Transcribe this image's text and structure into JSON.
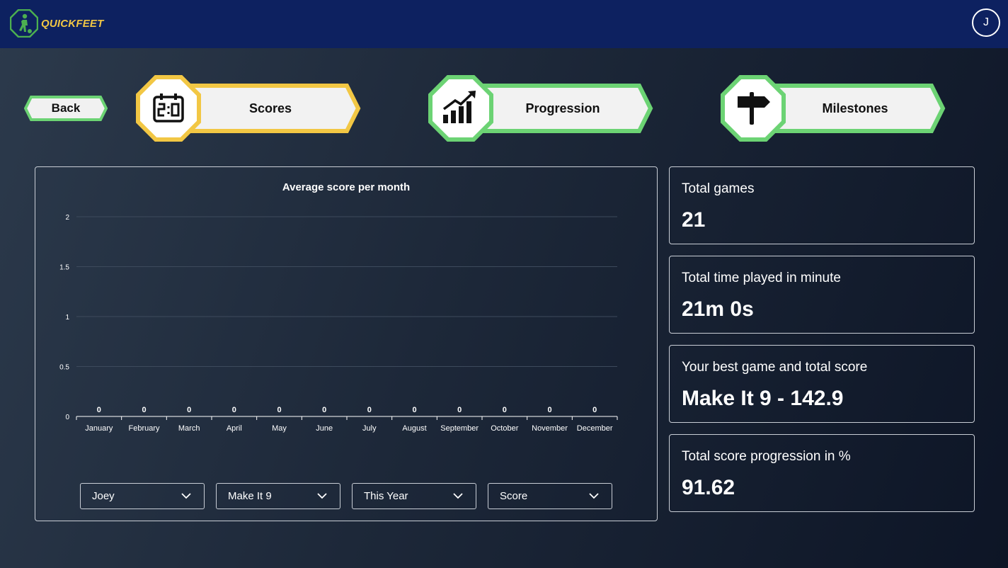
{
  "header": {
    "brand": "QUICKFEET",
    "avatar_initial": "J",
    "colors": {
      "bar": "#0d2160",
      "brand_text": "#f2c744",
      "logo_green": "#4caf50"
    }
  },
  "nav": {
    "back_label": "Back",
    "tabs": [
      {
        "label": "Scores",
        "icon": "scoreboard-icon",
        "active": true,
        "accent": "#f2c744"
      },
      {
        "label": "Progression",
        "icon": "bar-chart-up-icon",
        "active": false,
        "accent": "#6cd374"
      },
      {
        "label": "Milestones",
        "icon": "signpost-icon",
        "active": false,
        "accent": "#6cd374"
      }
    ]
  },
  "chart_data": {
    "type": "bar",
    "title": "Average score per month",
    "categories": [
      "January",
      "February",
      "March",
      "April",
      "May",
      "June",
      "July",
      "August",
      "September",
      "October",
      "November",
      "December"
    ],
    "values": [
      0,
      0,
      0,
      0,
      0,
      0,
      0,
      0,
      0,
      0,
      0,
      0
    ],
    "data_labels": [
      "0",
      "0",
      "0",
      "0",
      "0",
      "0",
      "0",
      "0",
      "0",
      "0",
      "0",
      "0"
    ],
    "yticks": [
      "0",
      "0.5",
      "1",
      "1.5",
      "2"
    ],
    "ylim": [
      0,
      2
    ],
    "grid": true,
    "legend": "none"
  },
  "filters": [
    {
      "value": "Joey"
    },
    {
      "value": "Make It 9"
    },
    {
      "value": "This Year"
    },
    {
      "value": "Score"
    }
  ],
  "stats": [
    {
      "label": "Total games",
      "value": "21"
    },
    {
      "label": "Total time played in minute",
      "value": "21m 0s"
    },
    {
      "label": "Your best game and total score",
      "value": "Make It 9 - 142.9"
    },
    {
      "label": "Total score progression in %",
      "value": "91.62"
    }
  ]
}
